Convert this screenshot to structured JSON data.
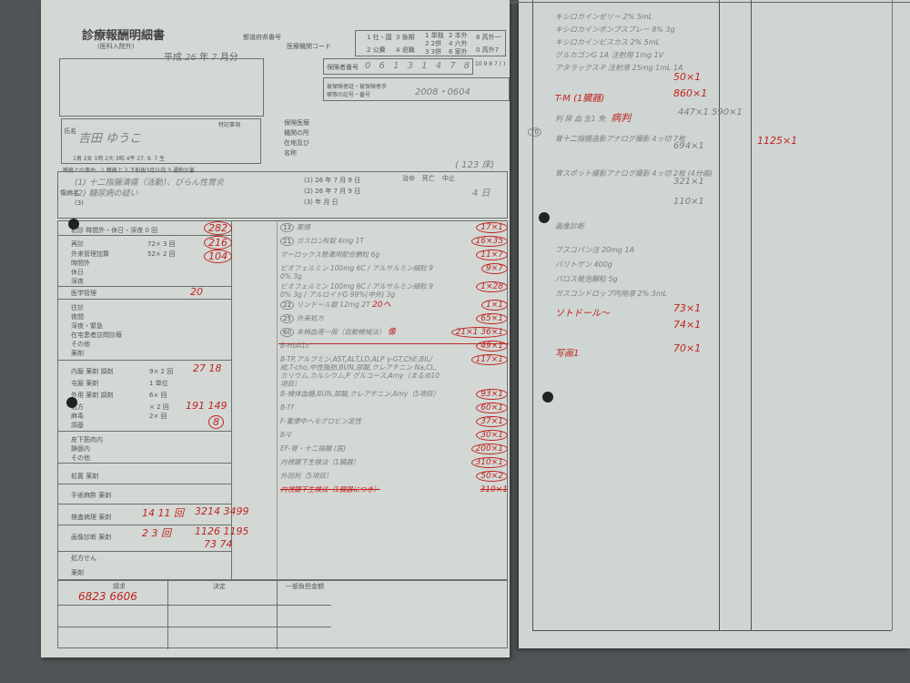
{
  "form": {
    "title": "診療報酬明細書",
    "subtitle": "(医科入院外)",
    "era": "平成",
    "year": "26",
    "year_label": "年",
    "month": "7",
    "month_label": "月分",
    "prefecture_label": "都道府県番号",
    "institution_code_label": "医療機関コード",
    "insurance_type": [
      "1 社・国",
      "2 公費",
      "3 後期",
      "4 退職"
    ],
    "category": [
      "1 単独",
      "2 2併",
      "3 3併"
    ],
    "payer": [
      "2 本外",
      "4 六外",
      "6 家外",
      "8 高外一",
      "0 高外7"
    ],
    "ratio": "10 9 8 7 ( )",
    "insurer_no_label": "保険者番号",
    "insurer_no": "0 6 1 3 1 4 7 8",
    "card_label": "被保険者証・被保険者手帳等の記号・番号",
    "card_no": "2008・0604",
    "patient_label": "氏名",
    "patient_name": "吉田 ゆうこ",
    "sex_birth": "1男 2女 1明 2大 3昭 4平 27. 9. 7 生",
    "work_reason_label": "職務上の事由",
    "work_reason": "1 職務上  2 下船後3月以内  3 通勤災害",
    "special_label": "特記事項",
    "hospital_label": "保険医療機関の所在地及び名称",
    "beds": "( 123 床)",
    "diagnosis_label": "傷病名",
    "diagnoses": [
      "(1) 十二指腸潰瘍（活動）、びらん性胃炎",
      "(2) 糖尿病の疑い",
      "(3)"
    ],
    "start_dates": [
      "(1) 26 年 7 月 9 日",
      "(2) 26 年 7 月 9 日",
      "(3)  年  月  日"
    ],
    "outcome": [
      "治ゆ",
      "死亡",
      "中止"
    ],
    "days": "4 日",
    "initial_visit": "初診 時間外・休日・深夜 0 回",
    "initial_points": "282",
    "revisit": [
      {
        "label": "再診",
        "calc": "72× 3 回",
        "pts": "216"
      },
      {
        "label": "外来管理加算",
        "calc": "52× 2 回",
        "pts": "104"
      },
      {
        "label": "時間外",
        "calc": "× 回"
      },
      {
        "label": "休日",
        "calc": "× 回"
      },
      {
        "label": "深夜",
        "calc": "× 回"
      }
    ],
    "medical_mgmt": "医学管理",
    "medical_mgmt_pts": "20",
    "home": [
      "往診",
      "夜間",
      "深夜・緊急",
      "在宅患者訪問診療",
      "その他",
      "薬剤"
    ],
    "medication": [
      {
        "label": "内服 薬剤 調剤",
        "calc": "9× 2 回",
        "pts": "27 18"
      },
      {
        "label": "屯服 薬剤",
        "calc": "1 単位"
      },
      {
        "label": "外用 薬剤 調剤",
        "calc": "6× 回"
      },
      {
        "label": "処方",
        "calc": "× 2 回",
        "pts": "191 149"
      },
      {
        "label": "麻毒",
        "calc": "2× 回"
      },
      {
        "label": "調基",
        "pts": "8"
      }
    ],
    "injection": [
      "皮下筋肉内",
      "静脈内",
      "その他"
    ],
    "procedures": [
      "処置 薬剤",
      "手術麻酔 薬剤"
    ],
    "exam": {
      "label": "検査病理 薬剤",
      "calc": "14 11 回",
      "pts": "3214 3499"
    },
    "imaging": {
      "label": "画像診断 薬剤",
      "calc": "2 3 回",
      "pts": "1126 1195",
      "drug": "73 74"
    },
    "other": [
      "処方せん",
      "薬剤"
    ],
    "claim_label": "請求",
    "claim": "6823 6606",
    "decision_label": "決定",
    "burden_label": "一部負担金額",
    "notes": [
      {
        "code": "13",
        "text": "薬情",
        "pts": "17×1"
      },
      {
        "code": "21",
        "text": "ガスロンN錠 4mg 1T",
        "pts": "16×35"
      },
      {
        "text": "マーロックス懸濁用配合顆粒 6g",
        "pts": "11×7"
      },
      {
        "text": "ビオフェルミン 100mg 6C / アルサルミン細粒 90% 3g",
        "pts": "9×7"
      },
      {
        "text": "ビオフェルミン 100mg 6C / アルサルミン細粒 90% 3g / アルロイドG 99%(中外) 3g",
        "pts": "1×28"
      },
      {
        "code": "22",
        "text": "リンドール錠 12mg 2T",
        "pts": "1×1",
        "extra": "20ヘ"
      },
      {
        "code": "25",
        "text": "外来処方",
        "pts": "65×1"
      },
      {
        "code": "60",
        "text": "末梢血液一般（自動機械法）",
        "extra": "像",
        "pts": "21×1 36×1"
      },
      {
        "text": "B-HbA1c",
        "pts": "49×1"
      },
      {
        "text": "B-TP,アルブミン,AST,ALT,LD,ALP γ-GT,ChE,BIL/総,T-cho,中性脂肪,BUN,尿酸,クレアチニン Na,CL,カリウム,カルシウム,P グルコース,Amy（まるめ10項目）",
        "pts": "117×1"
      },
      {
        "text": "B-検体血糖,BUN,尿酸,クレアチニン,Amy（5項目）",
        "pts": "93×1"
      },
      {
        "text": "B-Tf",
        "pts": "60×1"
      },
      {
        "text": "F-蓄便中ヘモグロビン定性",
        "pts": "37×1"
      },
      {
        "text": "B-V",
        "pts": "30×1"
      },
      {
        "text": "EF-胃・十二指腸 (医)",
        "pts": "200×1"
      },
      {
        "text": "内視鏡下生検法（1臓器）",
        "pts": "310×1"
      },
      {
        "text": "外因判（5項目）",
        "pts": "50×2"
      },
      {
        "text": "内視鏡下生検法（1臓器につき）",
        "pts": "310×1",
        "struck": true
      }
    ]
  },
  "continuation": {
    "lines": [
      {
        "text": "キシロカインゼリー 2% 5mL"
      },
      {
        "text": "キシロカインポンプスプレー 8% 3g"
      },
      {
        "text": "キシロカインビスカス 2% 5mL"
      },
      {
        "text": "グルカゴンG 1A 注射用 1mg 1V"
      },
      {
        "text": "アタラックス-P 注射液 25mg 1mL 1A"
      },
      {
        "text": "",
        "pts": "50×1",
        "red": true
      },
      {
        "text": "T-M (1臓器)",
        "pts": "860×1",
        "red": true
      },
      {
        "text": "判 尿 血 生1 免",
        "extra": "病判",
        "pts": "447×1 590×1"
      },
      {
        "code": "70",
        "text": "胃十二指腸造影アナログ撮影 4ッ切 7枚",
        "pts": "694×1",
        "total": "1125×1"
      },
      {
        "text": "胃スポット撮影アナログ撮影 4ッ切 2枚 (4分画)",
        "pts": "321×1"
      },
      {
        "text": "",
        "pts": "110×1"
      },
      {
        "text": "画像診断"
      },
      {
        "text": "ブスコパン注 20mg 1A"
      },
      {
        "text": "バリトゲン 400g"
      },
      {
        "text": "バロス発泡顆粒 5g"
      },
      {
        "text": "ガスコンドロップ内用液 2% 3mL"
      },
      {
        "text": "ソトドール〜",
        "pts": "73×1",
        "pts2": "74×1",
        "red": true
      },
      {
        "text": "写画1",
        "pts": "70×1",
        "red": true
      }
    ]
  }
}
